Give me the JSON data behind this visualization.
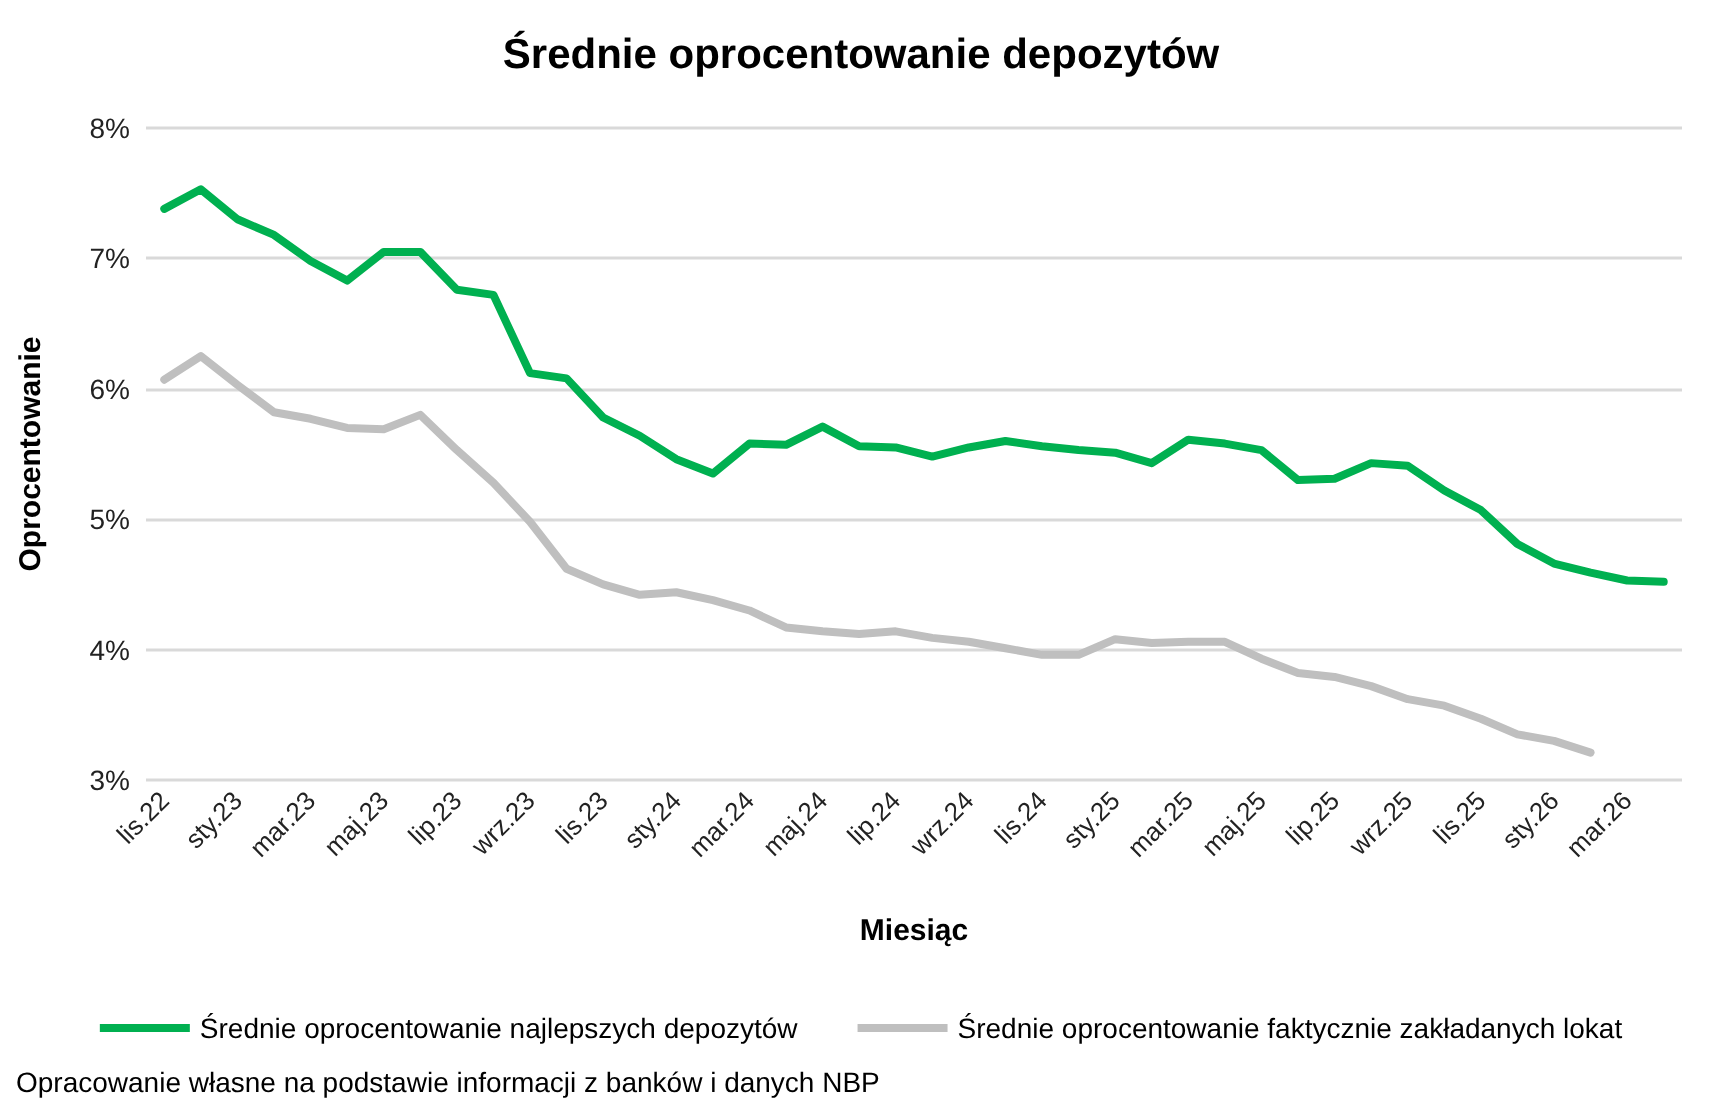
{
  "chart_data": {
    "type": "line",
    "title": "Średnie oprocentowanie depozytów",
    "xlabel": "Miesiąc",
    "ylabel": "Oprocentowanie",
    "categories": [
      "lis.22",
      null,
      "sty.23",
      null,
      "mar.23",
      null,
      "maj.23",
      null,
      "lip.23",
      null,
      "wrz.23",
      null,
      "lis.23",
      null,
      "sty.24",
      null,
      "mar.24",
      null,
      "maj.24",
      null,
      "lip.24",
      null,
      "wrz.24",
      null,
      "lis.24",
      null,
      "sty.25",
      null,
      "mar.25",
      null,
      "maj.25",
      null,
      "lip.25",
      null,
      "wrz.25",
      null,
      "lis.25",
      null,
      "sty.26",
      null,
      "mar.26",
      null
    ],
    "series": [
      {
        "name": "Średnie oprocentowanie najlepszych depozytów",
        "color": "#00b050",
        "values": [
          7.38,
          7.53,
          7.3,
          7.18,
          6.98,
          6.83,
          7.05,
          7.05,
          6.76,
          6.72,
          6.12,
          6.08,
          5.78,
          5.64,
          5.46,
          5.35,
          5.58,
          5.57,
          5.71,
          5.56,
          5.55,
          5.48,
          5.55,
          5.6,
          5.56,
          5.53,
          5.51,
          5.43,
          5.61,
          5.58,
          5.53,
          5.3,
          5.31,
          5.43,
          5.41,
          5.22,
          5.07,
          4.81,
          4.66,
          4.59,
          4.53,
          4.52
        ]
      },
      {
        "name": "Średnie oprocentowanie faktycznie zakładanych lokat",
        "color": "#bfbfbf",
        "values": [
          6.07,
          6.25,
          6.03,
          5.82,
          5.77,
          5.7,
          5.69,
          5.8,
          5.53,
          5.28,
          4.98,
          4.62,
          4.5,
          4.42,
          4.44,
          4.38,
          4.3,
          4.17,
          4.14,
          4.12,
          4.14,
          4.09,
          4.06,
          4.01,
          3.96,
          3.96,
          4.08,
          4.05,
          4.06,
          4.06,
          3.93,
          3.82,
          3.79,
          3.72,
          3.62,
          3.57,
          3.47,
          3.35,
          3.3,
          3.21,
          null,
          null
        ]
      }
    ],
    "ylim": [
      3,
      8
    ],
    "yticks": [
      {
        "value": 3,
        "label": "3%"
      },
      {
        "value": 4,
        "label": "4%"
      },
      {
        "value": 5,
        "label": "5%"
      },
      {
        "value": 6,
        "label": "6%"
      },
      {
        "value": 7,
        "label": "7%"
      },
      {
        "value": 8,
        "label": "8%"
      }
    ],
    "grid": "y",
    "legend": "bottom",
    "marker": "none",
    "line_style": "solid",
    "annotations": [
      "Opracowanie własne na podstawie informacji z banków i danych NBP"
    ]
  }
}
